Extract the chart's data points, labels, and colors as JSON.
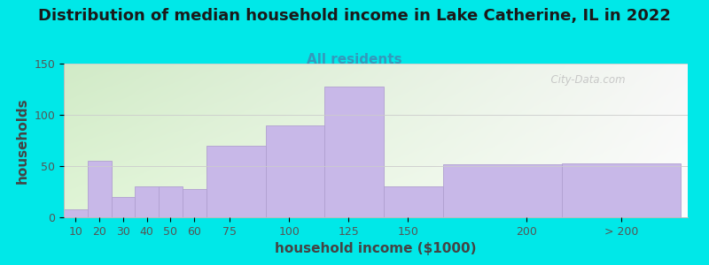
{
  "title": "Distribution of median household income in Lake Catherine, IL in 2022",
  "subtitle": "All residents",
  "xlabel": "household income ($1000)",
  "ylabel": "households",
  "bar_heights": [
    8,
    55,
    20,
    30,
    30,
    28,
    70,
    90,
    128,
    30,
    52,
    53
  ],
  "bar_widths": [
    10,
    10,
    10,
    10,
    10,
    10,
    25,
    25,
    25,
    25,
    50,
    50
  ],
  "bar_lefts": [
    5,
    15,
    25,
    35,
    45,
    55,
    65,
    90,
    115,
    140,
    165,
    215
  ],
  "bar_color": "#c8b8e8",
  "bar_edge_color": "#b0a0d0",
  "background_outer": "#00e8e8",
  "ylim": [
    0,
    150
  ],
  "yticks": [
    0,
    50,
    100,
    150
  ],
  "xtick_positions": [
    10,
    20,
    30,
    40,
    50,
    60,
    75,
    100,
    125,
    150,
    200,
    240
  ],
  "xtick_labels": [
    "10",
    "20",
    "30",
    "40",
    "50",
    "60",
    "75",
    "100",
    "125",
    "150",
    "200",
    "> 200"
  ],
  "title_fontsize": 13,
  "subtitle_fontsize": 11,
  "axis_label_fontsize": 11,
  "tick_fontsize": 9,
  "watermark_text": "  City-Data.com",
  "plot_xlim": [
    5,
    268
  ]
}
